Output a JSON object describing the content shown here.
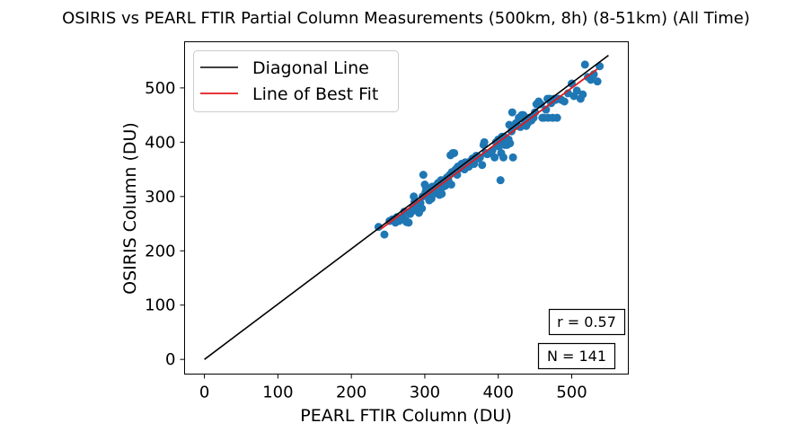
{
  "chart_data": {
    "type": "scatter",
    "title": "OSIRIS vs PEARL FTIR Partial Column Measurements (500km, 8h) (8-51km) (All Time)",
    "xlabel": "PEARL FTIR Column (DU)",
    "ylabel": "OSIRIS Column (DU)",
    "xlim": [
      -27,
      577
    ],
    "ylim": [
      -27,
      585
    ],
    "xticks": [
      0,
      100,
      200,
      300,
      400,
      500
    ],
    "yticks": [
      0,
      100,
      200,
      300,
      400,
      500
    ],
    "grid": false,
    "legend_position": "upper-left",
    "legend": [
      "Diagonal Line",
      "Line of Best Fit"
    ],
    "annotations": {
      "r": "r = 0.57",
      "n": "N = 141"
    },
    "colors": {
      "points": "#1f77b4",
      "diagonal": "#000000",
      "fit": "#e31a1c"
    },
    "diagonal": {
      "x": [
        0,
        550
      ],
      "y": [
        0,
        560
      ]
    },
    "best_fit": {
      "x": [
        240,
        535
      ],
      "y": [
        240,
        535
      ]
    },
    "points": [
      [
        237,
        244
      ],
      [
        245,
        230
      ],
      [
        252,
        255
      ],
      [
        256,
        258
      ],
      [
        260,
        252
      ],
      [
        262,
        262
      ],
      [
        265,
        255
      ],
      [
        268,
        258
      ],
      [
        270,
        262
      ],
      [
        272,
        272
      ],
      [
        274,
        256
      ],
      [
        275,
        253
      ],
      [
        278,
        252
      ],
      [
        280,
        268
      ],
      [
        282,
        272
      ],
      [
        284,
        280
      ],
      [
        285,
        300
      ],
      [
        286,
        290
      ],
      [
        288,
        276
      ],
      [
        290,
        285
      ],
      [
        292,
        270
      ],
      [
        294,
        288
      ],
      [
        296,
        278
      ],
      [
        297,
        300
      ],
      [
        298,
        340
      ],
      [
        300,
        322
      ],
      [
        301,
        308
      ],
      [
        302,
        315
      ],
      [
        304,
        300
      ],
      [
        305,
        305
      ],
      [
        306,
        293
      ],
      [
        308,
        310
      ],
      [
        309,
        296
      ],
      [
        310,
        318
      ],
      [
        312,
        305
      ],
      [
        314,
        312
      ],
      [
        315,
        320
      ],
      [
        316,
        318
      ],
      [
        318,
        325
      ],
      [
        320,
        303
      ],
      [
        321,
        312
      ],
      [
        322,
        330
      ],
      [
        323,
        305
      ],
      [
        325,
        318
      ],
      [
        326,
        330
      ],
      [
        328,
        320
      ],
      [
        330,
        335
      ],
      [
        332,
        330
      ],
      [
        334,
        340
      ],
      [
        335,
        376
      ],
      [
        336,
        322
      ],
      [
        337,
        345
      ],
      [
        338,
        380
      ],
      [
        340,
        380
      ],
      [
        342,
        350
      ],
      [
        344,
        340
      ],
      [
        345,
        355
      ],
      [
        348,
        352
      ],
      [
        350,
        360
      ],
      [
        352,
        356
      ],
      [
        354,
        350
      ],
      [
        355,
        363
      ],
      [
        357,
        355
      ],
      [
        360,
        355
      ],
      [
        362,
        365
      ],
      [
        365,
        370
      ],
      [
        367,
        360
      ],
      [
        370,
        375
      ],
      [
        372,
        370
      ],
      [
        375,
        372
      ],
      [
        378,
        358
      ],
      [
        380,
        395
      ],
      [
        381,
        400
      ],
      [
        383,
        380
      ],
      [
        385,
        378
      ],
      [
        388,
        380
      ],
      [
        392,
        385
      ],
      [
        395,
        372
      ],
      [
        397,
        400
      ],
      [
        398,
        395
      ],
      [
        400,
        405
      ],
      [
        401,
        392
      ],
      [
        403,
        330
      ],
      [
        404,
        380
      ],
      [
        405,
        410
      ],
      [
        406,
        400
      ],
      [
        407,
        372
      ],
      [
        408,
        410
      ],
      [
        409,
        395
      ],
      [
        410,
        398
      ],
      [
        412,
        395
      ],
      [
        413,
        400
      ],
      [
        414,
        405
      ],
      [
        415,
        432
      ],
      [
        416,
        398
      ],
      [
        418,
        420
      ],
      [
        419,
        455
      ],
      [
        420,
        372
      ],
      [
        422,
        430
      ],
      [
        424,
        435
      ],
      [
        426,
        430
      ],
      [
        428,
        445
      ],
      [
        430,
        428
      ],
      [
        432,
        450
      ],
      [
        434,
        450
      ],
      [
        436,
        440
      ],
      [
        438,
        430
      ],
      [
        440,
        435
      ],
      [
        442,
        445
      ],
      [
        445,
        440
      ],
      [
        448,
        445
      ],
      [
        450,
        455
      ],
      [
        452,
        470
      ],
      [
        455,
        475
      ],
      [
        458,
        470
      ],
      [
        460,
        445
      ],
      [
        462,
        445
      ],
      [
        465,
        460
      ],
      [
        467,
        480
      ],
      [
        468,
        445
      ],
      [
        470,
        480
      ],
      [
        472,
        472
      ],
      [
        474,
        445
      ],
      [
        476,
        480
      ],
      [
        478,
        478
      ],
      [
        480,
        445
      ],
      [
        482,
        480
      ],
      [
        486,
        478
      ],
      [
        490,
        475
      ],
      [
        495,
        490
      ],
      [
        500,
        508
      ],
      [
        503,
        485
      ],
      [
        507,
        495
      ],
      [
        512,
        480
      ],
      [
        515,
        488
      ],
      [
        518,
        543
      ],
      [
        522,
        520
      ],
      [
        526,
        515
      ],
      [
        530,
        525
      ],
      [
        535,
        512
      ],
      [
        538,
        540
      ]
    ]
  }
}
